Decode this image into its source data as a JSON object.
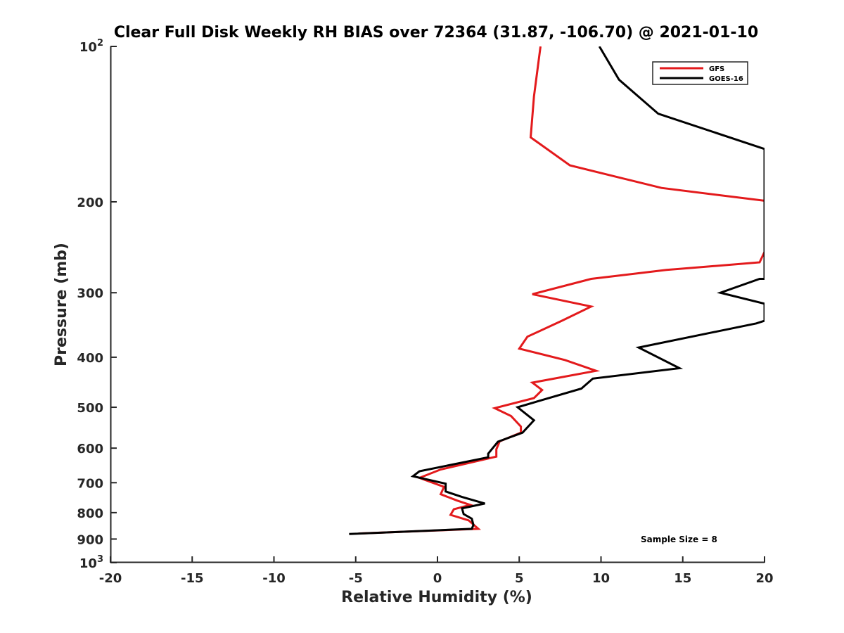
{
  "chart_data": {
    "type": "line",
    "title": "Clear Full Disk Weekly RH BIAS over 72364 (31.87, -106.70) @ 2021-01-10",
    "xlabel": "Relative Humidity (%)",
    "ylabel": "Pressure (mb)",
    "xlim": [
      -20,
      20
    ],
    "ylim": [
      100,
      1000
    ],
    "y_scale": "log",
    "y_reversed": true,
    "grid": false,
    "legend_position": "top-right",
    "x_ticks": [
      "-20",
      "-15",
      "-10",
      "-5",
      "0",
      "5",
      "10",
      "15",
      "20"
    ],
    "y_ticks": [
      {
        "value": 100,
        "base": "10",
        "exp": "2"
      },
      {
        "value": 200,
        "label": "200"
      },
      {
        "value": 300,
        "label": "300"
      },
      {
        "value": 400,
        "label": "400"
      },
      {
        "value": 500,
        "label": "500"
      },
      {
        "value": 600,
        "label": "600"
      },
      {
        "value": 700,
        "label": "700"
      },
      {
        "value": 800,
        "label": "800"
      },
      {
        "value": 900,
        "label": "900"
      },
      {
        "value": 1000,
        "base": "10",
        "exp": "3"
      }
    ],
    "series": [
      {
        "name": "GFS",
        "color": "#e31a1c",
        "points": [
          [
            6.3,
            100
          ],
          [
            5.9,
            125
          ],
          [
            5.7,
            150
          ],
          [
            8.1,
            170
          ],
          [
            13.7,
            188
          ],
          [
            20,
            199
          ],
          [
            20,
            250
          ],
          [
            19.7,
            262
          ],
          [
            14.0,
            271
          ],
          [
            9.4,
            282
          ],
          [
            5.8,
            302
          ],
          [
            9.4,
            319
          ],
          [
            7.6,
            340
          ],
          [
            5.5,
            365
          ],
          [
            5.0,
            385
          ],
          [
            7.8,
            405
          ],
          [
            9.7,
            425
          ],
          [
            5.8,
            448
          ],
          [
            6.4,
            463
          ],
          [
            5.9,
            480
          ],
          [
            3.5,
            502
          ],
          [
            4.5,
            520
          ],
          [
            5.1,
            545
          ],
          [
            5.1,
            560
          ],
          [
            3.8,
            582
          ],
          [
            3.6,
            603
          ],
          [
            3.6,
            623
          ],
          [
            0.2,
            660
          ],
          [
            -1.1,
            685
          ],
          [
            0.4,
            713
          ],
          [
            0.2,
            737
          ],
          [
            1.2,
            758
          ],
          [
            2.0,
            773
          ],
          [
            1.0,
            788
          ],
          [
            0.8,
            808
          ],
          [
            1.9,
            828
          ],
          [
            2.5,
            860
          ],
          [
            -4.8,
            878
          ]
        ]
      },
      {
        "name": "GOES-16",
        "color": "#000000",
        "points": [
          [
            9.9,
            100
          ],
          [
            11.1,
            116
          ],
          [
            13.5,
            135
          ],
          [
            20,
            158
          ],
          [
            20,
            282
          ],
          [
            19.7,
            282
          ],
          [
            17.3,
            300
          ],
          [
            20,
            315
          ],
          [
            20,
            340
          ],
          [
            19.5,
            344
          ],
          [
            12.3,
            383
          ],
          [
            14.8,
            420
          ],
          [
            9.5,
            440
          ],
          [
            8.8,
            460
          ],
          [
            4.9,
            500
          ],
          [
            5.9,
            530
          ],
          [
            5.2,
            560
          ],
          [
            3.7,
            583
          ],
          [
            3.1,
            615
          ],
          [
            3.1,
            625
          ],
          [
            -1.1,
            665
          ],
          [
            -1.5,
            680
          ],
          [
            0.5,
            703
          ],
          [
            0.5,
            728
          ],
          [
            1.5,
            746
          ],
          [
            2.9,
            768
          ],
          [
            1.5,
            785
          ],
          [
            1.6,
            805
          ],
          [
            2.1,
            822
          ],
          [
            2.2,
            845
          ],
          [
            2.1,
            860
          ],
          [
            -5.4,
            880
          ]
        ]
      }
    ],
    "annotation": "Sample Size = 8"
  }
}
